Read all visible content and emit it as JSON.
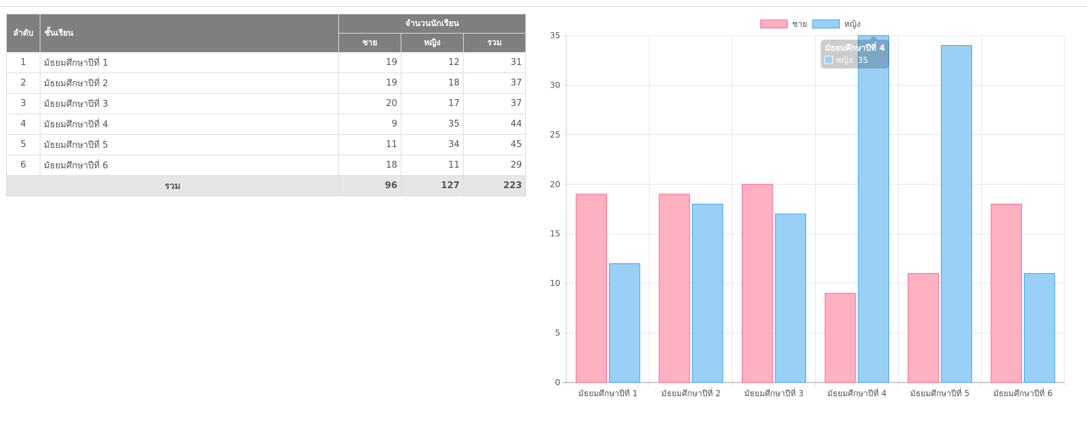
{
  "table": {
    "headers": {
      "index": "ลำดับ",
      "class": "ชั้นเรียน",
      "group": "จำนวนนักเรียน",
      "male": "ชาย",
      "female": "หญิง",
      "total": "รวม"
    },
    "rows": [
      {
        "index": "1",
        "class": "มัธยมศึกษาปีที่ 1",
        "male": "19",
        "female": "12",
        "total": "31"
      },
      {
        "index": "2",
        "class": "มัธยมศึกษาปีที่ 2",
        "male": "19",
        "female": "18",
        "total": "37"
      },
      {
        "index": "3",
        "class": "มัธยมศึกษาปีที่ 3",
        "male": "20",
        "female": "17",
        "total": "37"
      },
      {
        "index": "4",
        "class": "มัธยมศึกษาปีที่ 4",
        "male": "9",
        "female": "35",
        "total": "44"
      },
      {
        "index": "5",
        "class": "มัธยมศึกษาปีที่ 5",
        "male": "11",
        "female": "34",
        "total": "45"
      },
      {
        "index": "6",
        "class": "มัธยมศึกษาปีที่ 6",
        "male": "18",
        "female": "11",
        "total": "29"
      }
    ],
    "footer": {
      "label": "รวม",
      "male": "96",
      "female": "127",
      "total": "223"
    }
  },
  "chart_data": {
    "type": "bar",
    "categories": [
      "มัธยมศึกษาปีที่ 1",
      "มัธยมศึกษาปีที่ 2",
      "มัธยมศึกษาปีที่ 3",
      "มัธยมศึกษาปีที่ 4",
      "มัธยมศึกษาปีที่ 5",
      "มัธยมศึกษาปีที่ 6"
    ],
    "series": [
      {
        "name": "ชาย",
        "values": [
          19,
          19,
          20,
          9,
          11,
          18
        ],
        "color": "#ffb1c1",
        "border": "#ff6384"
      },
      {
        "name": "หญิง",
        "values": [
          12,
          18,
          17,
          35,
          34,
          11
        ],
        "color": "#9ad0f5",
        "border": "#36a2eb"
      }
    ],
    "ylim": [
      0,
      35
    ],
    "yticks": [
      0,
      5,
      10,
      15,
      20,
      25,
      30,
      35
    ],
    "grid": true,
    "legend": "top",
    "tooltip": {
      "title": "มัธยมศึกษาปีที่ 4",
      "line": "หญิง: 35",
      "category_index": 3,
      "series_index": 1
    }
  }
}
